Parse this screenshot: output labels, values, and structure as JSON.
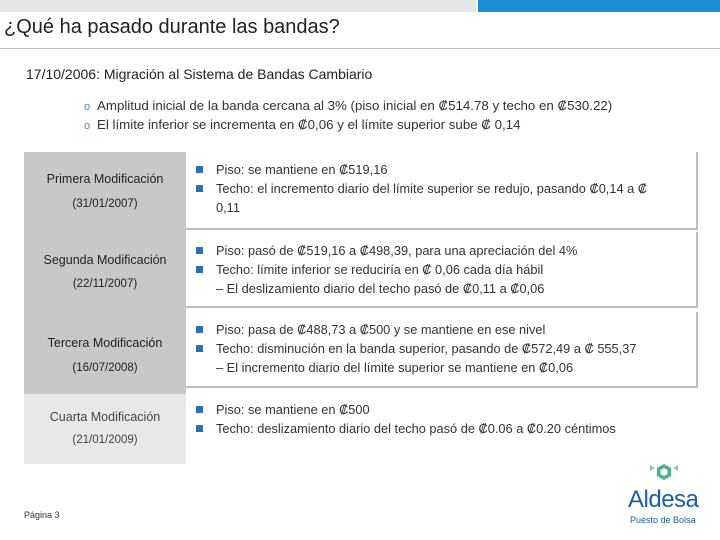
{
  "title": "¿Qué ha pasado durante las bandas?",
  "subtitle": "17/10/2006: Migración al Sistema de Bandas Cambiario",
  "intro_bullets": [
    "Amplitud inicial de la banda cercana al 3% (piso inicial en ₡514.78 y techo en ₡530.22)",
    "El límite inferior se incrementa en ₡0,06 y el límite superior sube ₡ 0,14"
  ],
  "modifications": [
    {
      "label": "Primera Modificación",
      "date": "(31/01/2007)",
      "lines": [
        {
          "type": "bullet",
          "text": "Piso: se mantiene en ₡519,16"
        },
        {
          "type": "bullet",
          "text": "Techo: el incremento diario del límite superior se redujo, pasando ₡0,14 a ₡"
        },
        {
          "type": "cont",
          "text": "0,11"
        }
      ]
    },
    {
      "label": "Segunda Modificación",
      "date": "(22/11/2007)",
      "lines": [
        {
          "type": "bullet",
          "text": "Piso: pasó de  ₡519,16 a ₡498,39, para una apreciación del 4%"
        },
        {
          "type": "bullet",
          "text": "Techo: límite inferior se reduciría en ₡ 0,06 cada día hábil"
        },
        {
          "type": "dash",
          "text": "–  El deslizamiento diario del techo pasó de ₡0,11 a ₡0,06"
        }
      ]
    },
    {
      "label": "Tercera Modificación",
      "date": "(16/07/2008)",
      "lines": [
        {
          "type": "bullet",
          "text": "Piso: pasa de ₡488,73 a ₡500 y se mantiene en ese nivel"
        },
        {
          "type": "bullet",
          "text": "Techo: disminución en la banda superior, pasando de ₡572,49 a ₡ 555,37"
        },
        {
          "type": "dash",
          "text": "–  El incremento diario del límite superior se mantiene en ₡0,06"
        }
      ]
    },
    {
      "label": "Cuarta Modificación",
      "date": "(21/01/2009)",
      "lines": [
        {
          "type": "bullet",
          "text": "Piso: se mantiene en ₡500"
        },
        {
          "type": "bullet",
          "text": "Techo: deslizamiento diario del techo pasó de ₡0.06 a ₡0.20 céntimos"
        }
      ]
    }
  ],
  "footer": "Página 3",
  "logo": {
    "name": "Aldesa",
    "tagline": "Puesto de Bolsa",
    "icon": "aldesa-logo-icon"
  },
  "colors": {
    "accent": "#1b8fd1",
    "panel": "#c8c8c8",
    "bullet": "#2b6fb6",
    "brand": "#1b5fa8",
    "logo_green": "#4db08a"
  }
}
